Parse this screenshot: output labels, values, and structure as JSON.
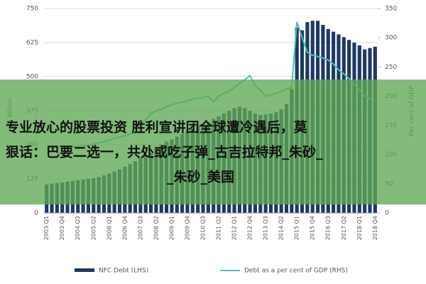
{
  "chart_data": {
    "type": "combo",
    "y_label": "$ billion",
    "y2_label": "Per cent of GDP",
    "categories": [
      "2003 Q1",
      null,
      null,
      "2003 Q4",
      null,
      null,
      "2004 Q3",
      null,
      null,
      "2005 Q2",
      null,
      null,
      "2006 Q1",
      null,
      null,
      "2006 Q4",
      null,
      null,
      "2007 Q3",
      null,
      null,
      "2008 Q2",
      null,
      null,
      "2009 Q1",
      null,
      null,
      "2009 Q4",
      null,
      null,
      "2010 Q3",
      null,
      null,
      "2011 Q2",
      null,
      null,
      "2012 Q1",
      null,
      null,
      "2012 Q4",
      null,
      null,
      "2013 Q3",
      null,
      null,
      "2014 Q2",
      null,
      null,
      "2015 Q1",
      null,
      null,
      "2015 Q4",
      null,
      null,
      "2016 Q3",
      null,
      null,
      "2017 Q2",
      null,
      null,
      "2018 Q1",
      null,
      null,
      "2018 Q4"
    ],
    "series": [
      {
        "name": "NFC Debt (LHS)",
        "type": "bar",
        "color": "#1f3864",
        "values": [
          105,
          108,
          110,
          112,
          115,
          118,
          120,
          122,
          125,
          128,
          132,
          138,
          145,
          152,
          160,
          170,
          180,
          190,
          200,
          210,
          220,
          235,
          250,
          262,
          270,
          280,
          290,
          300,
          310,
          318,
          325,
          335,
          345,
          355,
          365,
          375,
          385,
          390,
          385,
          375,
          365,
          360,
          362,
          365,
          370,
          380,
          400,
          455,
          680,
          670,
          700,
          705,
          705,
          690,
          675,
          665,
          655,
          645,
          635,
          625,
          615,
          600,
          605,
          610
        ]
      },
      {
        "name": "Debt as a per cent of GDP (RHS)",
        "type": "line",
        "axis": "y2",
        "color": "#4bbfb4",
        "values": [
          110,
          111,
          112,
          113,
          112,
          113,
          114,
          115,
          116,
          118,
          120,
          122,
          125,
          128,
          130,
          132,
          135,
          140,
          150,
          160,
          170,
          175,
          178,
          182,
          185,
          188,
          190,
          192,
          195,
          196,
          198,
          200,
          190,
          200,
          205,
          208,
          215,
          222,
          228,
          235,
          218,
          210,
          200,
          202,
          205,
          208,
          212,
          215,
          327,
          300,
          275,
          270,
          268,
          265,
          262,
          255,
          245,
          238,
          230,
          220,
          210,
          200,
          195,
          193
        ]
      }
    ],
    "ylim": [
      0,
      750
    ],
    "yticks": [
      0,
      125,
      250,
      375,
      500,
      625,
      750
    ],
    "y2lim": [
      0,
      350
    ],
    "y2ticks": [
      0,
      50,
      100,
      150,
      200,
      250,
      300,
      350
    ],
    "grid": true
  },
  "overlay": {
    "lines": [
      "专业放心的股票投资 胜利宣讲团全球遭冷遇后，莫",
      "狠话：巴要二选一，共处或吃子弹_古吉拉特邦_朱砂_",
      "_朱砂_美国"
    ]
  }
}
